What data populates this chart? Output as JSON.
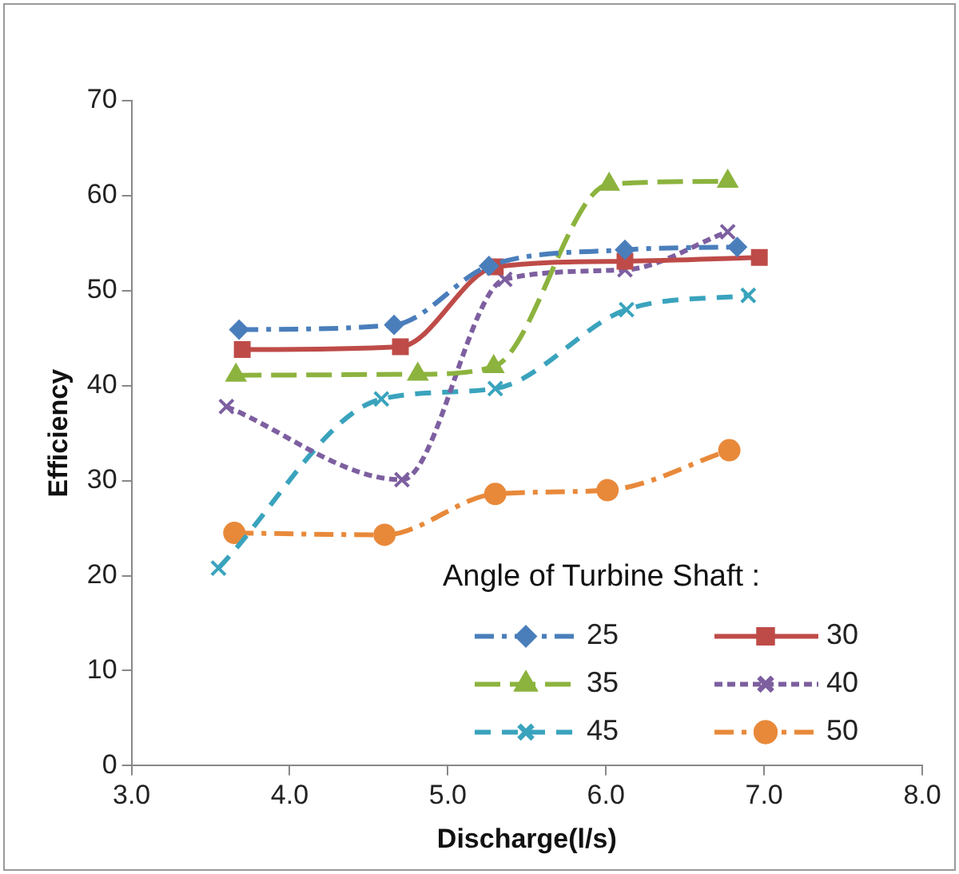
{
  "chart_data": {
    "type": "line",
    "xlabel": "Discharge(l/s)",
    "ylabel": "Efficiency",
    "legend_title": "Angle of Turbine Shaft :",
    "legend": "bottom right",
    "grid": false,
    "xlim": [
      3,
      8
    ],
    "xticks": [
      {
        "value": 3,
        "label": "3.0"
      },
      {
        "value": 4,
        "label": "4.0"
      },
      {
        "value": 5,
        "label": "5.0"
      },
      {
        "value": 6,
        "label": "6.0"
      },
      {
        "value": 7,
        "label": "7.0"
      },
      {
        "value": 8,
        "label": "8.0"
      }
    ],
    "ylim": [
      0,
      70
    ],
    "yticks": [
      0,
      10,
      20,
      30,
      40,
      50,
      60,
      70
    ],
    "series": [
      {
        "name": "25",
        "color": "#4a7ebb",
        "marker": "diamond",
        "line_style": "dashdot",
        "x": [
          3.68,
          4.66,
          5.26,
          6.12,
          6.83
        ],
        "values": [
          45.9,
          46.4,
          52.6,
          54.3,
          54.6
        ]
      },
      {
        "name": "30",
        "color": "#be4b48",
        "marker": "square",
        "line_style": "solid",
        "x": [
          3.7,
          4.7,
          5.3,
          6.12,
          6.97
        ],
        "values": [
          43.8,
          44.1,
          52.5,
          53.1,
          53.5
        ]
      },
      {
        "name": "35",
        "color": "#8cb33e",
        "marker": "triangle",
        "line_style": "longdash",
        "x": [
          3.66,
          4.81,
          5.29,
          6.02,
          6.77
        ],
        "values": [
          41.1,
          41.2,
          42.0,
          61.2,
          61.5
        ]
      },
      {
        "name": "40",
        "color": "#7d5fa0",
        "marker": "cross",
        "line_style": "dotted",
        "x": [
          3.6,
          4.71,
          5.36,
          6.12,
          6.77
        ],
        "values": [
          37.8,
          30.1,
          51.2,
          52.2,
          56.2
        ]
      },
      {
        "name": "45",
        "color": "#3aa3bd",
        "marker": "cross",
        "line_style": "dashed",
        "x": [
          3.55,
          4.58,
          5.3,
          6.13,
          6.9
        ],
        "values": [
          20.8,
          38.6,
          39.7,
          48.0,
          49.5
        ]
      },
      {
        "name": "50",
        "color": "#e8893a",
        "marker": "circle",
        "line_style": "dashdot",
        "x": [
          3.65,
          4.6,
          5.3,
          6.01,
          6.78
        ],
        "values": [
          24.5,
          24.3,
          28.6,
          29.0,
          33.2
        ]
      }
    ]
  }
}
